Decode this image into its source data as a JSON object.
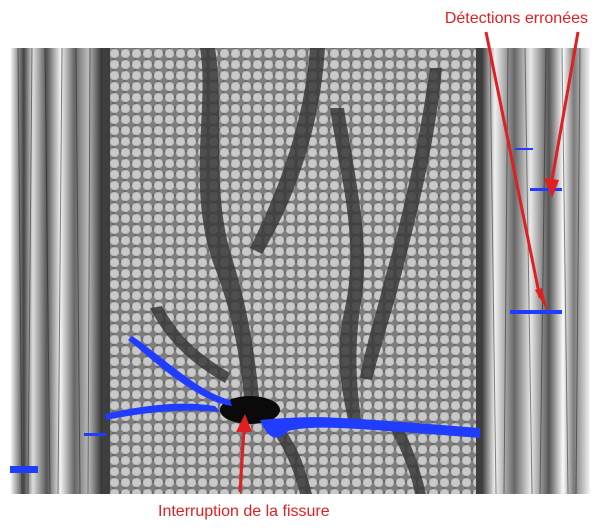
{
  "annotations": {
    "top_label": "Détections erronées",
    "bottom_label": "Interruption de la fissure"
  },
  "colors": {
    "annotation": "#e02020",
    "crack_detection": "#1f3cff",
    "fiber": "#c8c8c8",
    "matrix": "#4a4a4a"
  }
}
